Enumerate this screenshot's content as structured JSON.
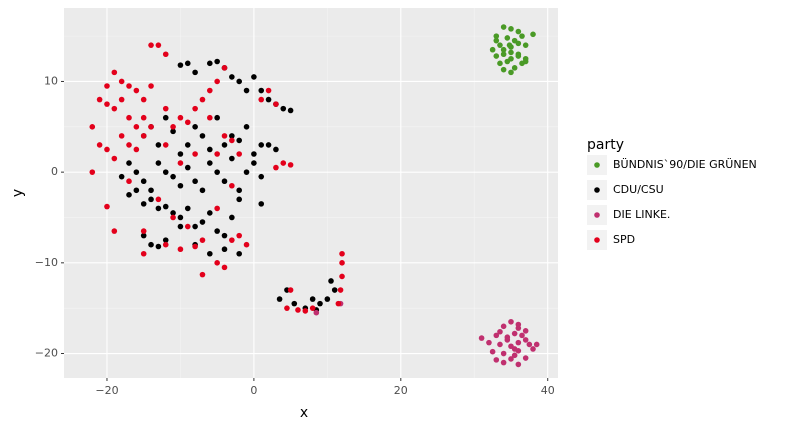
{
  "chart_data": {
    "type": "scatter",
    "x_label": "x",
    "y_label": "y",
    "legend_title": "party",
    "xlim": [
      -25.85,
      41.4
    ],
    "ylim": [
      -22.7,
      18.1
    ],
    "xticks": [
      {
        "value": -20,
        "label": "−20"
      },
      0,
      20,
      40
    ],
    "yticks": [
      {
        "value": -20,
        "label": "−20"
      },
      {
        "value": -10,
        "label": "−10"
      },
      0,
      10
    ],
    "xminor": [
      -10,
      10,
      30
    ],
    "yminor": [
      -15,
      -5,
      5,
      15
    ],
    "grid": true,
    "legend": "right",
    "series": [
      {
        "name": "BÜNDNIS`90/DIE GRÜNEN",
        "color": "#4a9a26",
        "x": [
          34,
          35,
          36,
          33,
          34.5,
          35.5,
          36.5,
          33.5,
          34,
          35,
          36,
          37,
          32.5,
          33,
          34,
          35,
          36,
          37,
          33.5,
          34.5,
          35.5,
          36.5,
          34,
          35,
          36,
          38,
          33,
          35,
          37,
          34.8
        ],
        "values": [
          16,
          15.8,
          15.5,
          15,
          14.8,
          14.5,
          15,
          14,
          13.5,
          13.8,
          14.2,
          14,
          13.5,
          12.8,
          13,
          12.5,
          13,
          12.5,
          12,
          12.2,
          11.5,
          12,
          11.3,
          11,
          12.8,
          15.2,
          14.5,
          13.2,
          12.2,
          14
        ]
      },
      {
        "name": "CDU/CSU",
        "color": "#000000",
        "x": [
          -10,
          -9,
          -8,
          -6,
          -5,
          -4,
          -3,
          -2,
          -1,
          0,
          1,
          2,
          3,
          4,
          5,
          -15,
          -14,
          -13,
          -12,
          -11,
          -10,
          -9,
          -8,
          -7,
          -6,
          -5,
          -4,
          -3,
          -2,
          -1,
          0,
          1,
          2,
          3,
          -17,
          -16,
          -15,
          -14,
          -13,
          -12,
          -11,
          -10,
          -9,
          -8,
          -7,
          -6,
          -5,
          -4,
          -3,
          -2,
          -1,
          0,
          1,
          -18,
          -17,
          -16,
          -15,
          -14,
          -13,
          -12,
          -11,
          -10,
          -9,
          -8,
          -7,
          -6,
          -5,
          -4,
          -3,
          -2,
          1,
          -15,
          -14,
          -13,
          -12,
          -10,
          -8,
          -6,
          -4,
          -2,
          3.5,
          4.5,
          5.5,
          7,
          8,
          9,
          10,
          10.5,
          11,
          8.5
        ],
        "values": [
          11.8,
          12,
          11,
          12,
          12.2,
          11.5,
          10.5,
          10,
          9,
          10.5,
          9,
          8,
          7.5,
          7,
          6.8,
          4,
          5,
          3,
          6,
          4.5,
          2,
          3,
          5,
          4,
          2.5,
          6,
          3,
          4,
          3.5,
          5,
          2,
          3,
          3,
          2.5,
          1,
          0,
          -1,
          -2,
          1,
          0,
          -0.5,
          -1.5,
          0.5,
          -1,
          -2,
          1,
          0,
          -1,
          1.5,
          -2,
          0,
          1,
          -0.5,
          -0.5,
          -2.5,
          -2,
          -3.5,
          -3,
          -4,
          -3.8,
          -4.5,
          -5,
          -4,
          -6,
          -5.5,
          -4.5,
          -6.5,
          -7,
          -5,
          -3,
          -3.5,
          -7,
          -8,
          -8.2,
          -7.5,
          -6,
          -8,
          -9,
          -8.5,
          -9,
          -14,
          -13,
          -14.5,
          -15,
          -14,
          -14.5,
          -14,
          -12,
          -13,
          -15.2
        ]
      },
      {
        "name": "DIE LINKE.",
        "color": "#c0306f",
        "x": [
          35,
          34,
          36,
          35.5,
          33,
          34.5,
          36.5,
          37,
          32,
          33.5,
          35,
          36,
          37.5,
          38,
          31,
          32.5,
          34,
          35.5,
          36,
          37,
          33,
          34,
          35,
          36,
          34.5,
          35.5,
          37,
          38.5,
          33.5,
          36,
          11.8,
          8.5
        ],
        "values": [
          -16.5,
          -17,
          -17.2,
          -17.8,
          -18,
          -18.2,
          -18,
          -17.5,
          -18.8,
          -19,
          -19.2,
          -18.8,
          -19,
          -19.5,
          -18.3,
          -19.8,
          -20,
          -20.2,
          -19.7,
          -20.5,
          -20.7,
          -21,
          -20.6,
          -21.2,
          -18.5,
          -19.5,
          -18.5,
          -19,
          -17.6,
          -16.8,
          -14.5,
          -15.5
        ]
      },
      {
        "name": "SPD",
        "color": "#e3001b",
        "x": [
          -22,
          -21,
          -20,
          -19,
          -18,
          -17,
          -16,
          -15,
          -14,
          -13,
          -12,
          -21,
          -20,
          -19,
          -18,
          -17,
          -16,
          -15,
          -14,
          -12,
          -11,
          -10,
          -9,
          -8,
          -7,
          -6,
          -5,
          -4,
          -20,
          -19,
          -18,
          -17,
          -16,
          -15,
          -14,
          -12,
          -10,
          -8,
          -6,
          -5,
          -4,
          -3,
          -2,
          1,
          2,
          3,
          -22,
          -20,
          -19,
          -17,
          -15,
          -13,
          -11,
          -9,
          -7,
          -5,
          -3,
          -2,
          -1,
          3,
          4,
          5,
          -15,
          -12,
          -10,
          -8,
          -7,
          -5,
          -4,
          -3,
          12,
          12,
          12,
          11.8,
          11.5,
          8,
          7,
          6,
          5,
          4.5
        ],
        "values": [
          5,
          8,
          9.5,
          11,
          10,
          9.5,
          9,
          8,
          14,
          14,
          13,
          3,
          7.5,
          7,
          8,
          6,
          5,
          4,
          9.5,
          7,
          5,
          6,
          5.5,
          7,
          8,
          9,
          10,
          11.5,
          2.5,
          1.5,
          4,
          3,
          2.5,
          6,
          5,
          3,
          1,
          2,
          6,
          2,
          4,
          3.5,
          2,
          8,
          9,
          7.5,
          0,
          -3.8,
          -6.5,
          -1,
          -6.5,
          -3,
          -5,
          -6,
          -7.5,
          -4,
          -1.5,
          -7,
          -8,
          0.5,
          1,
          0.8,
          -9,
          -8,
          -8.5,
          -8.2,
          -11.3,
          -10,
          -10.5,
          -7.5,
          -9,
          -10,
          -11.5,
          -13,
          -14.5,
          -15,
          -15.3,
          -15.2,
          -13,
          -15
        ]
      }
    ]
  }
}
